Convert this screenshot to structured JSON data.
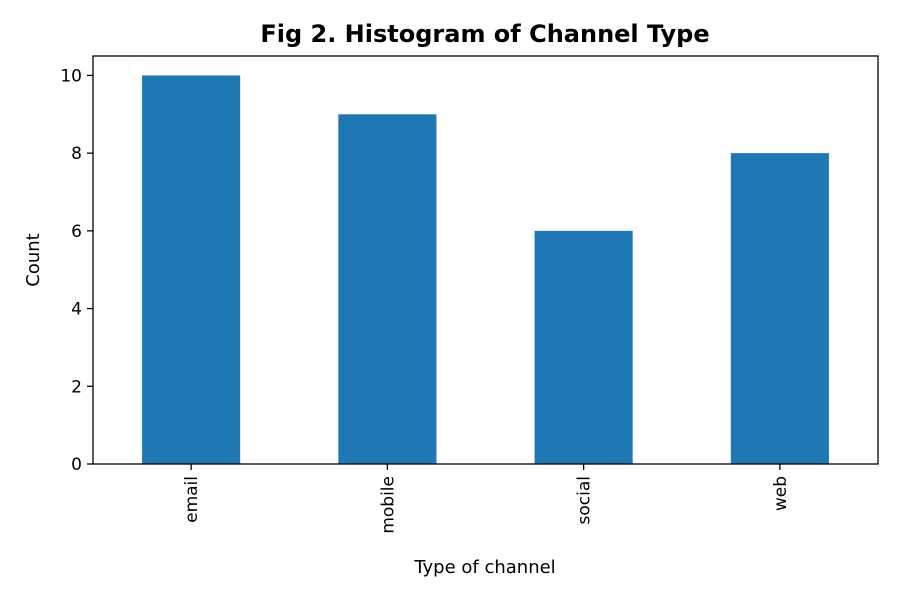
{
  "chart_data": {
    "type": "bar",
    "title": "Fig 2. Histogram of Channel Type",
    "xlabel": "Type of channel",
    "ylabel": "Count",
    "categories": [
      "email",
      "mobile",
      "social",
      "web"
    ],
    "values": [
      10,
      9,
      6,
      8
    ],
    "ylim": [
      0,
      10.5
    ],
    "yticks": [
      0,
      2,
      4,
      6,
      8,
      10
    ],
    "bar_color": "#1f77b4",
    "grid": false,
    "legend": false,
    "x_tick_rotation": "vertical"
  }
}
